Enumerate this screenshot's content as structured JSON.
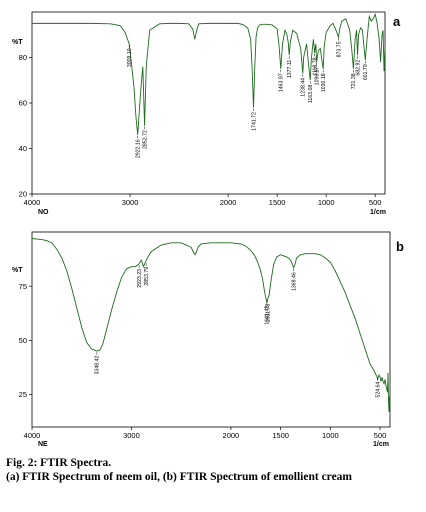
{
  "figure": {
    "caption_title": "Fig. 2: FTIR Spectra.",
    "caption_detail": "(a) FTIR Spectrum of neem oil, (b) FTIR Spectrum of emollient cream"
  },
  "chart_data": [
    {
      "type": "line",
      "panel_letter": "a",
      "sample_code": "NO",
      "y_unit_label": "%T",
      "x_unit_label": "1/cm",
      "xlim": [
        4000,
        400
      ],
      "ylim": [
        20,
        100
      ],
      "x_ticks": [
        4000,
        3000,
        2000,
        1500,
        1000,
        500
      ],
      "y_ticks": [
        20,
        40,
        60,
        80
      ],
      "grid": false,
      "line_color": "#1e6b1e",
      "series": [
        {
          "x": [
            4000,
            3800,
            3600,
            3400,
            3200,
            3100,
            3050,
            3009,
            2990,
            2960,
            2940,
            2922,
            2905,
            2890,
            2870,
            2852,
            2835,
            2800,
            2700,
            2600,
            2500,
            2400,
            2360,
            2340,
            2320,
            2300,
            2200,
            2100,
            2000,
            1900,
            1850,
            1800,
            1770,
            1755,
            1741,
            1728,
            1715,
            1700,
            1680,
            1650,
            1600,
            1550,
            1500,
            1480,
            1463,
            1445,
            1420,
            1400,
            1385,
            1377,
            1365,
            1340,
            1300,
            1260,
            1238,
            1230,
            1200,
            1175,
            1163,
            1150,
            1130,
            1118,
            1105,
            1098,
            1080,
            1060,
            1048,
            1030,
            1020,
            1000,
            960,
            930,
            900,
            874,
            860,
            840,
            800,
            760,
            740,
            722,
            705,
            690,
            680,
            670,
            650,
            630,
            615,
            601,
            585,
            570,
            560,
            540,
            520,
            500,
            480,
            460,
            445,
            430,
            420,
            410,
            405,
            400
          ],
          "y": [
            95,
            95,
            95,
            95,
            94.8,
            94,
            91,
            86,
            79,
            67,
            54,
            46,
            57,
            66,
            76,
            50,
            76,
            92,
            94.8,
            95,
            95,
            94.8,
            92.5,
            88,
            92,
            94.8,
            95,
            95,
            95,
            95,
            94.5,
            93,
            88,
            75,
            58,
            76,
            89,
            93,
            94.3,
            94.6,
            94.6,
            94.3,
            92.5,
            85,
            75,
            86,
            92,
            90,
            86,
            81,
            87,
            92,
            90.5,
            84,
            73,
            80,
            86,
            75,
            70,
            80,
            88,
            82,
            86,
            78,
            83,
            84,
            80,
            75,
            85,
            91,
            94,
            95,
            92,
            89,
            93,
            96,
            97,
            92,
            84,
            75,
            88,
            92,
            81,
            90,
            93,
            92,
            85,
            79,
            87,
            94,
            98,
            96,
            97,
            99,
            95,
            88,
            78,
            90,
            92,
            74,
            80,
            85
          ]
        }
      ],
      "annotations": [
        {
          "x": 3009,
          "y": 86,
          "label": "3009.10"
        },
        {
          "x": 2922,
          "y": 46,
          "label": "2922.16"
        },
        {
          "x": 2852,
          "y": 50,
          "label": "2852.72"
        },
        {
          "x": 1741,
          "y": 58,
          "label": "1741.72"
        },
        {
          "x": 1463,
          "y": 75,
          "label": "1463.97"
        },
        {
          "x": 1377,
          "y": 81,
          "label": "1377.11"
        },
        {
          "x": 1238,
          "y": 73,
          "label": "1238.44"
        },
        {
          "x": 1163,
          "y": 70,
          "label": "1163.08"
        },
        {
          "x": 1118,
          "y": 82,
          "label": "1118.78"
        },
        {
          "x": 1098,
          "y": 78,
          "label": "1098.87"
        },
        {
          "x": 1030,
          "y": 75,
          "label": "1030.18"
        },
        {
          "x": 874,
          "y": 89,
          "label": "873.75"
        },
        {
          "x": 722,
          "y": 75,
          "label": "721.38"
        },
        {
          "x": 680,
          "y": 81,
          "label": "682.92"
        },
        {
          "x": 601,
          "y": 79,
          "label": "601.79"
        }
      ]
    },
    {
      "type": "line",
      "panel_letter": "b",
      "sample_code": "NE",
      "y_unit_label": "%T",
      "x_unit_label": "1/cm",
      "xlim": [
        4000,
        400
      ],
      "ylim": [
        10,
        100
      ],
      "x_ticks": [
        4000,
        3000,
        2000,
        1500,
        1000,
        500
      ],
      "y_ticks": [
        25,
        50,
        75
      ],
      "grid": false,
      "line_color": "#1e6b1e",
      "series": [
        {
          "x": [
            4000,
            3900,
            3850,
            3800,
            3750,
            3700,
            3650,
            3600,
            3550,
            3500,
            3450,
            3400,
            3370,
            3348,
            3320,
            3290,
            3250,
            3200,
            3150,
            3100,
            3050,
            3000,
            2960,
            2930,
            2900,
            2880,
            2860,
            2840,
            2800,
            2700,
            2600,
            2500,
            2400,
            2380,
            2360,
            2345,
            2330,
            2300,
            2200,
            2100,
            2000,
            1900,
            1850,
            1800,
            1760,
            1730,
            1700,
            1680,
            1660,
            1641,
            1631,
            1615,
            1595,
            1570,
            1540,
            1500,
            1470,
            1440,
            1420,
            1400,
            1380,
            1369,
            1355,
            1340,
            1300,
            1250,
            1200,
            1150,
            1100,
            1050,
            1000,
            950,
            900,
            850,
            800,
            750,
            700,
            650,
            600,
            560,
            540,
            530,
            525,
            518,
            510,
            500,
            490,
            480,
            470,
            460,
            450,
            440,
            430,
            425,
            420,
            415,
            410,
            405,
            400
          ],
          "y": [
            97,
            96.5,
            96,
            95,
            92,
            88,
            82,
            74,
            65,
            56,
            49,
            46,
            45.5,
            45,
            45.5,
            48,
            55,
            64,
            72,
            79,
            83,
            84,
            84,
            85,
            87,
            84,
            86,
            88,
            91,
            94,
            95,
            95,
            93,
            91,
            89.5,
            91,
            93,
            94.5,
            95,
            95,
            95,
            94.5,
            93.5,
            91.5,
            89,
            86,
            82,
            78,
            72,
            68,
            69,
            71,
            78,
            85,
            88.5,
            89.5,
            89,
            88.5,
            88,
            87,
            85,
            83.5,
            85,
            88,
            89.5,
            90,
            90,
            90,
            89.5,
            88,
            86,
            82,
            77,
            72,
            66,
            60,
            53,
            46,
            39,
            36,
            34,
            33,
            32,
            33,
            34,
            33,
            31,
            33,
            31,
            30,
            32,
            29,
            27,
            26,
            35,
            22,
            17,
            24,
            20
          ]
        }
      ],
      "annotations": [
        {
          "x": 3348,
          "y": 45,
          "label": "3348.42"
        },
        {
          "x": 2923,
          "y": 85,
          "label": "2923.23"
        },
        {
          "x": 2853,
          "y": 86,
          "label": "2853.79"
        },
        {
          "x": 1641,
          "y": 68,
          "label": "1641.42"
        },
        {
          "x": 1631,
          "y": 69,
          "label": "1631.78"
        },
        {
          "x": 1369,
          "y": 83.5,
          "label": "1369.46"
        },
        {
          "x": 524,
          "y": 33,
          "label": "524.64"
        }
      ]
    }
  ]
}
